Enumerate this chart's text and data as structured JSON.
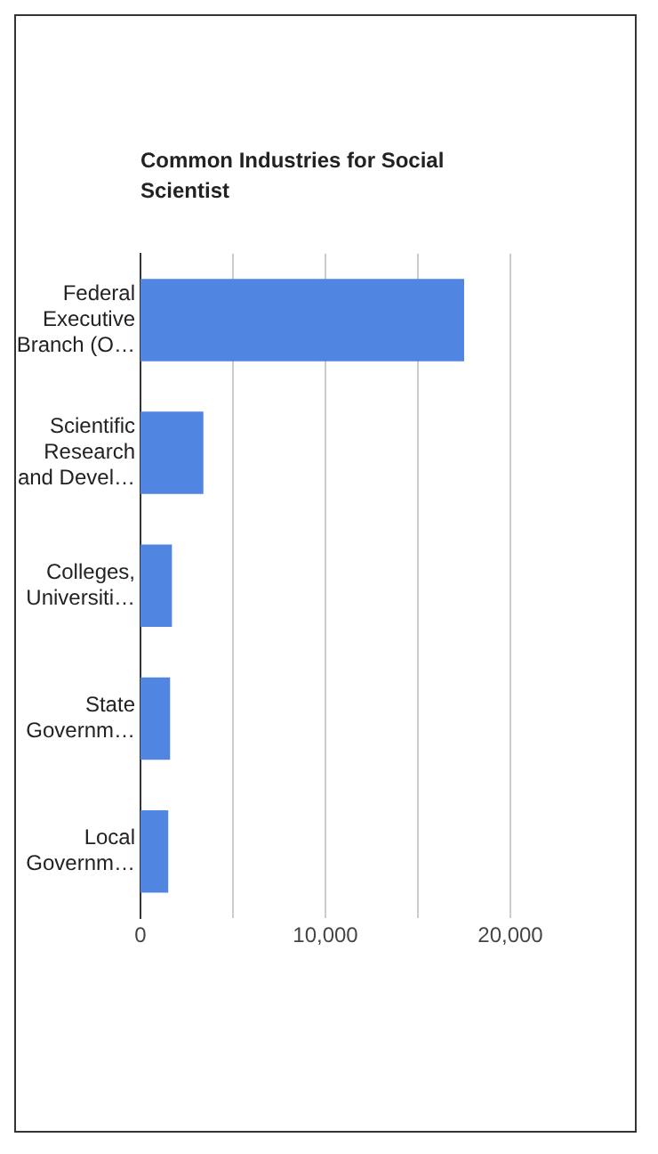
{
  "chart_data": {
    "type": "bar",
    "orientation": "horizontal",
    "title": "Common Industries for Social Scientist",
    "categories": [
      "Federal Executive Branch (O…",
      "Scientific Research and Devel…",
      "Colleges, Universiti…",
      "State Governm…",
      "Local Governm…"
    ],
    "values": [
      17500,
      3400,
      1700,
      1600,
      1500
    ],
    "color": "#5085e2",
    "xlim": [
      0,
      20000
    ],
    "xticks": [
      0,
      {
        "value": 5000,
        "label": null
      },
      {
        "value": 10000,
        "label": "10,000"
      },
      {
        "value": 15000,
        "label": null
      },
      {
        "value": 20000,
        "label": "20,000"
      }
    ],
    "grid": "x",
    "legend": false
  }
}
